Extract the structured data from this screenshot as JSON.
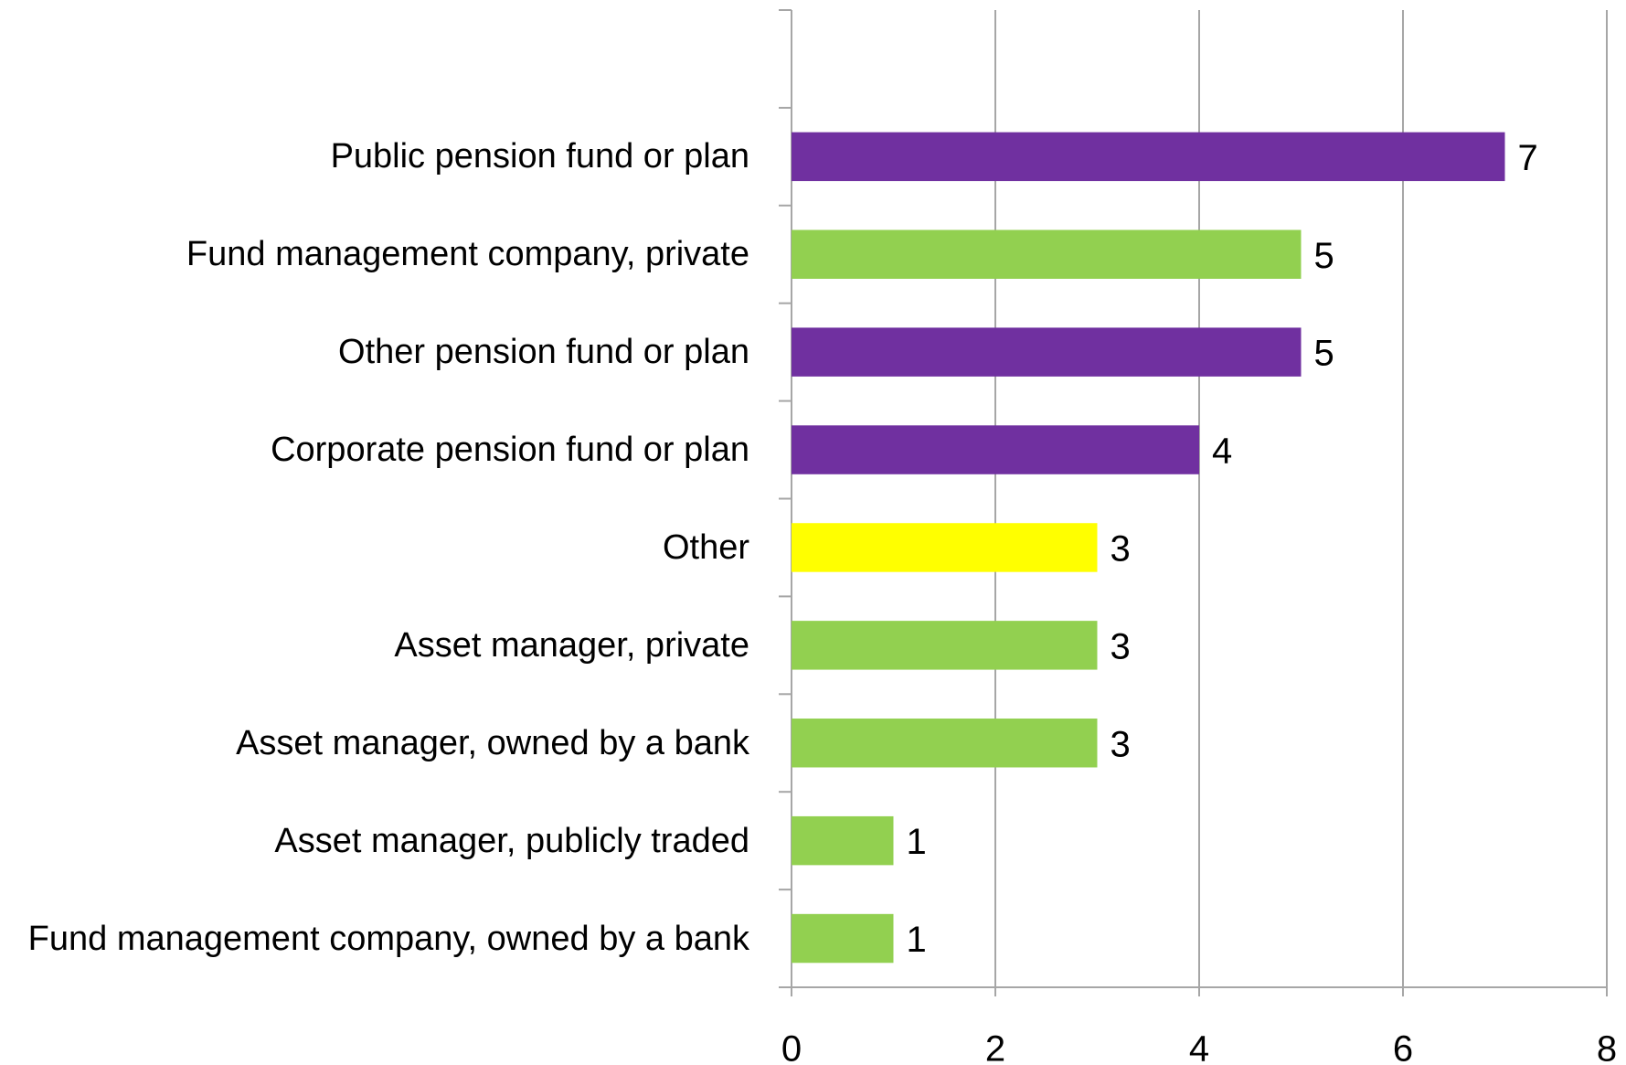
{
  "chart_data": {
    "type": "bar",
    "categories": [
      null,
      "Public pension fund or plan",
      "Fund management company, private",
      "Other pension fund or plan",
      "Corporate pension fund or plan",
      "Other",
      "Asset manager, private",
      "Asset manager, owned by a bank",
      "Asset manager, publicly traded",
      "Fund management company, owned by a bank"
    ],
    "values": [
      null,
      7,
      5,
      5,
      4,
      3,
      3,
      3,
      1,
      1
    ],
    "colors": [
      null,
      "#7030a0",
      "#92d050",
      "#7030a0",
      "#7030a0",
      "#ffff00",
      "#92d050",
      "#92d050",
      "#92d050",
      "#92d050"
    ],
    "xlim": [
      0,
      8
    ],
    "xticks": [
      0,
      2,
      4,
      6,
      8
    ],
    "grid": true
  }
}
